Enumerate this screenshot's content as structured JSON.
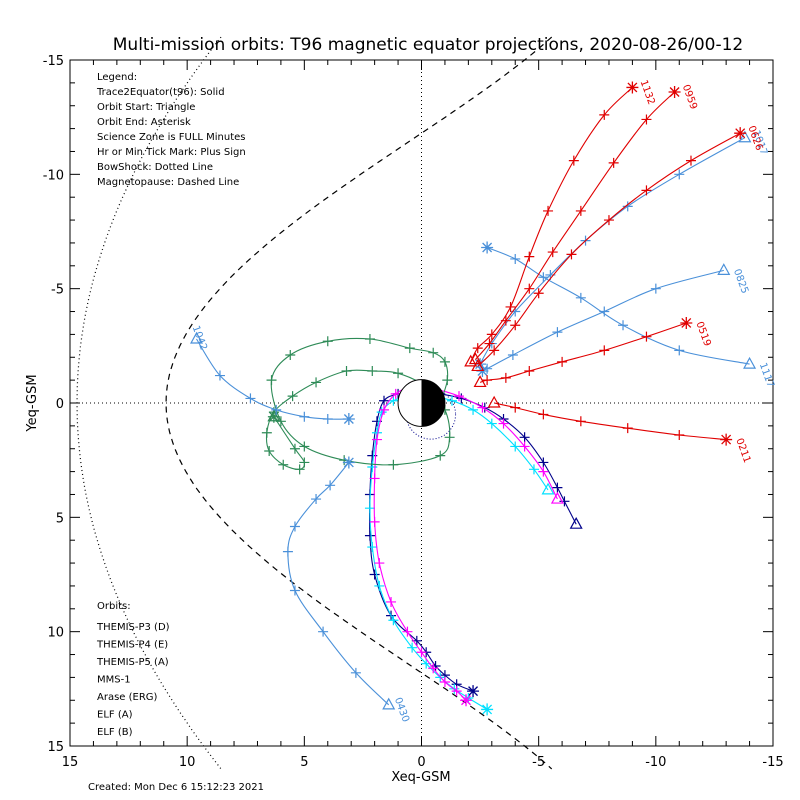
{
  "chart_data": {
    "type": "line",
    "title": "Multi-mission orbits: T96 magnetic equator projections, 2020-08-26/00-12",
    "xlabel": "Xeq-GSM",
    "ylabel": "Yeq-GSM",
    "xlim": [
      15,
      -15
    ],
    "ylim": [
      -15,
      15
    ],
    "x_ticks": [
      "15",
      "10",
      "5",
      "0",
      "-5",
      "-10",
      "-15"
    ],
    "y_ticks": [
      "-15",
      "-10",
      "-5",
      "0",
      "5",
      "10",
      "15"
    ],
    "grid": false,
    "legend_lines": [
      "Legend:",
      "Trace2Equator(t96): Solid",
      "Orbit Start: Triangle",
      "Orbit End: Asterisk",
      "Science Zone is FULL Minutes",
      "Hr or Min Tick Mark: Plus Sign",
      "BowShock: Dotted Line",
      "Magnetopause: Dashed Line"
    ],
    "orbits_heading": "Orbits:",
    "missions": [
      {
        "name": "THEMIS-P3 (D)",
        "color": "#00e0ff"
      },
      {
        "name": "THEMIS-P4 (E)",
        "color": "#00008b"
      },
      {
        "name": "THEMIS-P5 (A)",
        "color": "#ff00ff"
      },
      {
        "name": "MMS-1",
        "color": "#000000"
      },
      {
        "name": "Arase (ERG)",
        "color": "#2e8b57"
      },
      {
        "name": "ELF (A)",
        "color": "#4a90d9"
      },
      {
        "name": "ELF (B)",
        "color": "#e00000"
      }
    ],
    "series": [
      {
        "mission": "THEMIS-P4 (E)",
        "color": "#00008b",
        "x": [
          -6.6,
          -6.1,
          -5.8,
          -5.2,
          -4.4,
          -3.5,
          -2.7,
          -1.7,
          -0.8,
          0.2,
          1.0,
          1.6,
          1.9,
          2.1,
          2.2,
          2.2,
          2.0,
          1.3,
          0.2,
          -0.2,
          -0.6,
          -1.0,
          -1.5,
          -2.2
        ],
        "y": [
          5.3,
          4.3,
          3.7,
          2.6,
          1.5,
          0.7,
          0.2,
          -0.2,
          -0.4,
          -0.5,
          -0.4,
          -0.1,
          0.8,
          2.3,
          4.0,
          5.8,
          7.5,
          9.3,
          10.4,
          10.9,
          11.5,
          11.9,
          12.3,
          12.6
        ],
        "start": [
          -6.6,
          5.3
        ],
        "end": [
          -2.2,
          12.6
        ]
      },
      {
        "mission": "THEMIS-P3 (D)",
        "color": "#00e0ff",
        "x": [
          -5.4,
          -4.8,
          -4.0,
          -3.0,
          -2.2,
          -1.3,
          -0.4,
          0.5,
          1.2,
          1.7,
          1.9,
          2.1,
          2.2,
          2.1,
          1.8,
          1.2,
          0.4,
          -0.2,
          -0.8,
          -1.4,
          -2.0,
          -2.8
        ],
        "y": [
          3.8,
          2.9,
          1.9,
          0.9,
          0.3,
          -0.1,
          -0.3,
          -0.3,
          -0.1,
          0.4,
          1.3,
          2.8,
          4.6,
          6.3,
          8.0,
          9.5,
          10.7,
          11.4,
          12.0,
          12.5,
          12.9,
          13.4
        ],
        "start": [
          -5.4,
          3.8
        ],
        "end": [
          -2.8,
          13.4
        ]
      },
      {
        "mission": "THEMIS-P5 (A)",
        "color": "#ff00ff",
        "x": [
          -5.8,
          -5.2,
          -4.4,
          -3.5,
          -2.6,
          -1.6,
          -0.6,
          0.4,
          1.1,
          1.6,
          1.9,
          2.0,
          2.0,
          1.8,
          1.3,
          0.6,
          0.0,
          -0.5,
          -1.0,
          -1.5,
          -1.9
        ],
        "y": [
          4.2,
          3.0,
          1.9,
          0.9,
          0.2,
          -0.3,
          -0.6,
          -0.7,
          -0.4,
          0.3,
          1.6,
          3.3,
          5.2,
          7.0,
          8.7,
          10.0,
          10.9,
          11.6,
          12.2,
          12.6,
          13.0
        ],
        "start": [
          -5.8,
          4.2
        ],
        "end": [
          -1.9,
          13.0
        ]
      },
      {
        "mission": "Arase (ERG)",
        "color": "#2e8b57",
        "x": [
          -0.8,
          -1.1,
          -1.0,
          -0.5,
          0.5,
          2.2,
          4.0,
          5.6,
          6.4,
          6.0,
          5.0,
          3.3,
          1.2,
          -0.8,
          -1.2,
          -1.0,
          -0.2,
          1.0,
          2.1,
          3.2,
          4.5,
          5.5,
          6.3,
          6.6,
          6.5,
          5.9,
          5.2,
          5.0,
          5.4,
          6.3
        ],
        "y": [
          0.0,
          -1.0,
          -1.8,
          -2.2,
          -2.4,
          -2.8,
          -2.7,
          -2.1,
          -1.0,
          0.8,
          1.9,
          2.5,
          2.7,
          2.3,
          1.5,
          0.3,
          -0.7,
          -1.3,
          -1.4,
          -1.4,
          -0.9,
          -0.3,
          0.4,
          1.3,
          2.1,
          2.7,
          2.9,
          2.6,
          2.0,
          0.6
        ],
        "start": [
          6.3,
          0.6
        ],
        "end": [
          6.3,
          0.6
        ]
      },
      {
        "mission": "ELF (A)",
        "color": "#4a90d9",
        "label": "1042",
        "x": [
          9.6,
          8.6,
          7.3,
          6.2,
          5.0,
          4.0,
          3.1
        ],
        "y": [
          -2.8,
          -1.2,
          -0.2,
          0.3,
          0.6,
          0.7,
          0.7
        ],
        "start": [
          9.6,
          -2.8
        ],
        "end": [
          3.1,
          0.7
        ]
      },
      {
        "mission": "ELF (A)",
        "color": "#4a90d9",
        "label": "0430",
        "x": [
          1.4,
          2.8,
          4.2,
          5.4,
          5.7,
          5.4,
          4.5,
          3.9,
          3.1
        ],
        "y": [
          13.2,
          11.8,
          10.0,
          8.2,
          6.5,
          5.4,
          4.2,
          3.6,
          2.6
        ],
        "start": [
          1.4,
          13.2
        ],
        "end": [
          3.1,
          2.6
        ]
      },
      {
        "mission": "ELF (A)",
        "color": "#4a90d9",
        "label": "1117",
        "x": [
          -14.0,
          -11.0,
          -8.6,
          -6.8,
          -5.2,
          -4.0,
          -2.8
        ],
        "y": [
          -1.7,
          -2.3,
          -3.4,
          -4.6,
          -5.5,
          -6.3,
          -6.8
        ],
        "start": [
          -14.0,
          -1.7
        ],
        "end": [
          -2.8,
          -6.8
        ]
      },
      {
        "mission": "ELF (A)",
        "color": "#4a90d9",
        "label": "0825",
        "x": [
          -12.9,
          -10.0,
          -7.8,
          -5.8,
          -3.9,
          -2.8,
          -2.6
        ],
        "y": [
          -5.8,
          -5.0,
          -4.0,
          -3.1,
          -2.1,
          -1.5,
          -1.4
        ],
        "start": [
          -12.9,
          -5.8
        ],
        "end": [
          -2.6,
          -1.4
        ]
      },
      {
        "mission": "ELF (A)",
        "color": "#4a90d9",
        "label": "1017",
        "x": [
          -13.8,
          -11.0,
          -8.8,
          -7.0,
          -5.5,
          -4.0,
          -3.0,
          -2.5
        ],
        "y": [
          -11.6,
          -10.0,
          -8.6,
          -7.1,
          -5.6,
          -4.0,
          -2.6,
          -1.7
        ],
        "start": [
          -13.8,
          -11.6
        ],
        "end": [
          -2.5,
          -1.7
        ]
      },
      {
        "mission": "ELF (B)",
        "color": "#e00000",
        "label": "1132",
        "x": [
          -9.0,
          -7.8,
          -6.5,
          -5.4,
          -4.6,
          -3.8,
          -3.0,
          -2.4,
          -2.1
        ],
        "y": [
          -13.8,
          -12.6,
          -10.6,
          -8.4,
          -6.4,
          -4.2,
          -3.0,
          -2.4,
          -1.8
        ],
        "start": [
          -2.1,
          -1.8
        ],
        "end": [
          -9.0,
          -13.8
        ]
      },
      {
        "mission": "ELF (B)",
        "color": "#e00000",
        "label": "0959",
        "x": [
          -10.8,
          -9.6,
          -8.2,
          -6.8,
          -5.6,
          -4.6,
          -3.6,
          -2.9,
          -2.3
        ],
        "y": [
          -13.6,
          -12.4,
          -10.5,
          -8.4,
          -6.6,
          -5.0,
          -3.6,
          -2.6,
          -1.9
        ],
        "start": [
          -2.3,
          -1.9
        ],
        "end": [
          -10.8,
          -13.6
        ]
      },
      {
        "mission": "ELF (B)",
        "color": "#e00000",
        "label": "0626",
        "x": [
          -13.6,
          -11.5,
          -9.6,
          -8.0,
          -6.4,
          -5.0,
          -4.0,
          -3.1,
          -2.4
        ],
        "y": [
          -11.8,
          -10.6,
          -9.3,
          -8.0,
          -6.5,
          -4.8,
          -3.4,
          -2.3,
          -1.6
        ],
        "start": [
          -2.4,
          -1.6
        ],
        "end": [
          -13.6,
          -11.8
        ]
      },
      {
        "mission": "ELF (B)",
        "color": "#e00000",
        "label": "0519",
        "x": [
          -11.3,
          -9.6,
          -7.8,
          -6.0,
          -4.6,
          -3.6,
          -2.8,
          -2.5
        ],
        "y": [
          -3.5,
          -2.9,
          -2.3,
          -1.8,
          -1.4,
          -1.1,
          -1.0,
          -0.9
        ],
        "start": [
          -2.5,
          -0.9
        ],
        "end": [
          -11.3,
          -3.5
        ]
      },
      {
        "mission": "ELF (B)",
        "color": "#e00000",
        "label": "0211",
        "x": [
          -13.0,
          -11.0,
          -8.8,
          -6.8,
          -5.2,
          -4.0,
          -3.1
        ],
        "y": [
          1.6,
          1.4,
          1.1,
          0.8,
          0.5,
          0.2,
          0.0
        ],
        "start": [
          -3.1,
          0.0
        ],
        "end": [
          -13.0,
          1.6
        ]
      }
    ]
  },
  "footer": {
    "created": "Created: Mon Dec  6 15:12:23 2021"
  }
}
